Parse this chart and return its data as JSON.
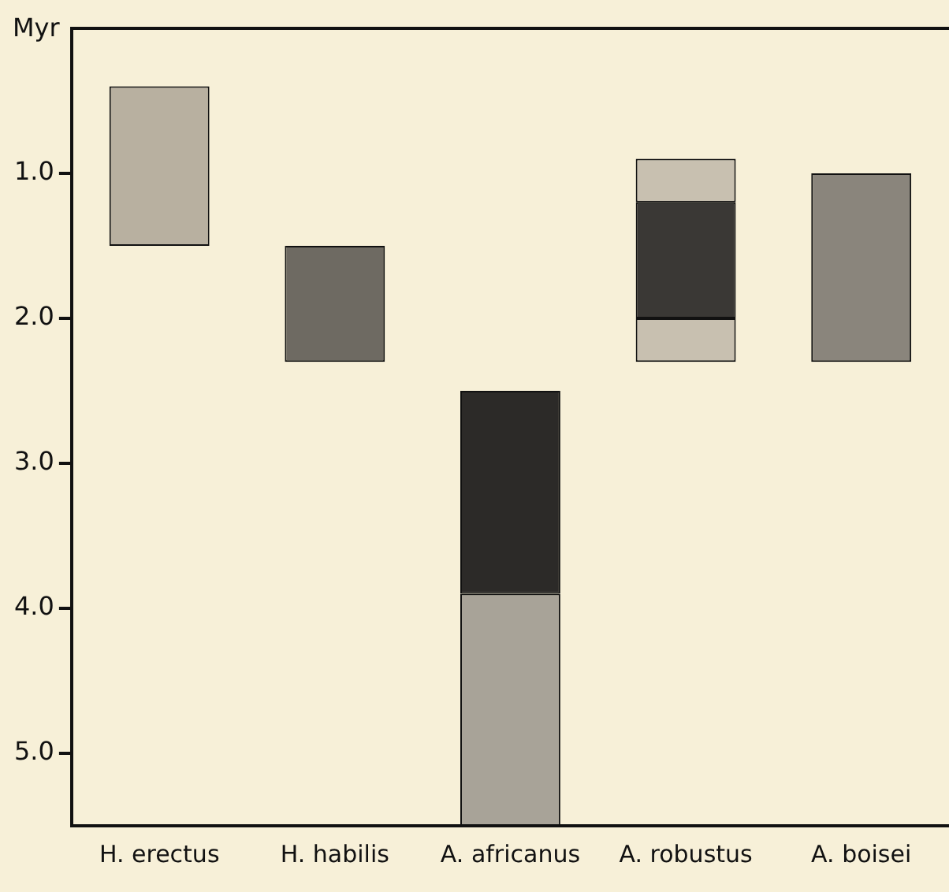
{
  "chart_data": {
    "type": "bar",
    "ylabel": "Myr",
    "categories": [
      "H. erectus",
      "H. habilis",
      "A. africanus",
      "A. robustus",
      "A. boisei"
    ],
    "series": [
      {
        "colors": [
          "#b8b0a0",
          "#6e6a62",
          "#2c2a28",
          "#c8c0b0",
          "#8a857c"
        ],
        "base": [
          0.4,
          1.5,
          2.5,
          0.9,
          1.0
        ],
        "values": [
          1.1,
          0.8,
          1.4,
          0.3,
          1.3
        ]
      },
      {
        "colors": [
          "#000000",
          "#000000",
          "#a8a398",
          "#3a3835",
          "#000000"
        ],
        "base": [
          null,
          null,
          3.9,
          1.2,
          null
        ],
        "values": [
          null,
          null,
          1.6,
          0.8,
          null
        ]
      },
      {
        "color": "#c8c0b0",
        "base": [
          null,
          null,
          null,
          2.0,
          null
        ],
        "values": [
          null,
          null,
          null,
          0.3,
          null
        ]
      }
    ],
    "ylim": [
      5.5,
      0
    ],
    "yticks": [
      {
        "value": 1,
        "label": "1.0"
      },
      {
        "value": 2,
        "label": "2.0"
      },
      {
        "value": 3,
        "label": "3.0"
      },
      {
        "value": 4,
        "label": "4.0"
      },
      {
        "value": 5,
        "label": "5.0"
      }
    ],
    "grid": false,
    "legend": false
  }
}
